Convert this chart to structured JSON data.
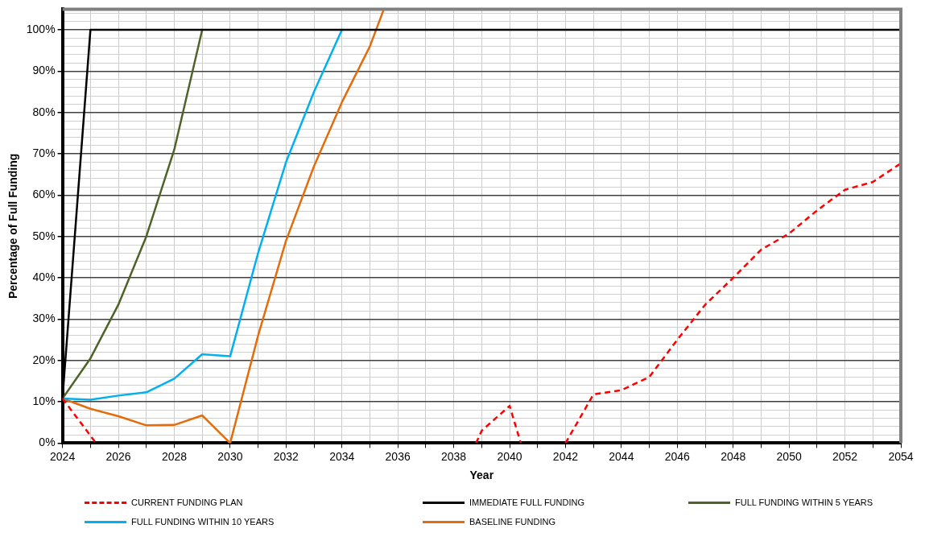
{
  "chart_data": {
    "type": "line",
    "xlabel": "Year",
    "ylabel": "Percentage of Full Funding",
    "grid": true,
    "legend": "bottom",
    "marker": "none",
    "xlim": [
      2024,
      2054
    ],
    "xticks": [
      2024,
      {
        "value": 2025,
        "label": null
      },
      2026,
      {
        "value": 2027,
        "label": null
      },
      2028,
      {
        "value": 2029,
        "label": null
      },
      2030,
      {
        "value": 2031,
        "label": null
      },
      2032,
      {
        "value": 2033,
        "label": null
      },
      2034,
      {
        "value": 2035,
        "label": null
      },
      2036,
      {
        "value": 2037,
        "label": null
      },
      2038,
      {
        "value": 2039,
        "label": null
      },
      2040,
      {
        "value": 2041,
        "label": null
      },
      2042,
      {
        "value": 2043,
        "label": null
      },
      2044,
      {
        "value": 2045,
        "label": null
      },
      2046,
      {
        "value": 2047,
        "label": null
      },
      2048,
      {
        "value": 2049,
        "label": null
      },
      2050,
      {
        "value": 2051,
        "label": null
      },
      2052,
      {
        "value": 2053,
        "label": null
      },
      2054
    ],
    "ylim": [
      0,
      105
    ],
    "yticks": [
      {
        "value": 0,
        "label": "0%"
      },
      {
        "value": 2,
        "label": null
      },
      {
        "value": 4,
        "label": null
      },
      {
        "value": 6,
        "label": null
      },
      {
        "value": 8,
        "label": null
      },
      {
        "value": 10,
        "label": "10%"
      },
      {
        "value": 12,
        "label": null
      },
      {
        "value": 14,
        "label": null
      },
      {
        "value": 16,
        "label": null
      },
      {
        "value": 18,
        "label": null
      },
      {
        "value": 20,
        "label": "20%"
      },
      {
        "value": 22,
        "label": null
      },
      {
        "value": 24,
        "label": null
      },
      {
        "value": 26,
        "label": null
      },
      {
        "value": 28,
        "label": null
      },
      {
        "value": 30,
        "label": "30%"
      },
      {
        "value": 32,
        "label": null
      },
      {
        "value": 34,
        "label": null
      },
      {
        "value": 36,
        "label": null
      },
      {
        "value": 38,
        "label": null
      },
      {
        "value": 40,
        "label": "40%"
      },
      {
        "value": 42,
        "label": null
      },
      {
        "value": 44,
        "label": null
      },
      {
        "value": 46,
        "label": null
      },
      {
        "value": 48,
        "label": null
      },
      {
        "value": 50,
        "label": "50%"
      },
      {
        "value": 52,
        "label": null
      },
      {
        "value": 54,
        "label": null
      },
      {
        "value": 56,
        "label": null
      },
      {
        "value": 58,
        "label": null
      },
      {
        "value": 60,
        "label": "60%"
      },
      {
        "value": 62,
        "label": null
      },
      {
        "value": 64,
        "label": null
      },
      {
        "value": 66,
        "label": null
      },
      {
        "value": 68,
        "label": null
      },
      {
        "value": 70,
        "label": "70%"
      },
      {
        "value": 72,
        "label": null
      },
      {
        "value": 74,
        "label": null
      },
      {
        "value": 76,
        "label": null
      },
      {
        "value": 78,
        "label": null
      },
      {
        "value": 80,
        "label": "80%"
      },
      {
        "value": 82,
        "label": null
      },
      {
        "value": 84,
        "label": null
      },
      {
        "value": 86,
        "label": null
      },
      {
        "value": 88,
        "label": null
      },
      {
        "value": 90,
        "label": "90%"
      },
      {
        "value": 92,
        "label": null
      },
      {
        "value": 94,
        "label": null
      },
      {
        "value": 96,
        "label": null
      },
      {
        "value": 98,
        "label": null
      },
      {
        "value": 100,
        "label": "100%"
      },
      {
        "value": 102,
        "label": null
      },
      {
        "value": 104,
        "label": null
      }
    ],
    "series": [
      {
        "name": "CURRENT FUNDING PLAN",
        "color": "#ff0000",
        "line_style": "dashed",
        "x": [
          2024,
          2025.2,
          2030,
          2038.8,
          2039,
          2040,
          2040.4,
          2041,
          2042,
          2043,
          2044,
          2045,
          2046,
          2047,
          2048,
          2049,
          2050,
          2051,
          2052,
          2053,
          2054
        ],
        "values": [
          10.8,
          0,
          null,
          0,
          3,
          9,
          0,
          null,
          0,
          11.8,
          12.8,
          16,
          25,
          33.5,
          40,
          46.8,
          50.7,
          56.3,
          61.3,
          63.2,
          67.7
        ]
      },
      {
        "name": "IMMEDIATE FULL FUNDING",
        "color": "#000000",
        "line_style": "solid",
        "x": [
          2024,
          2025,
          2054
        ],
        "values": [
          10.8,
          100,
          100
        ]
      },
      {
        "name": "FULL FUNDING WITHIN 5 YEARS",
        "color": "#4f6228",
        "line_style": "solid",
        "x": [
          2024,
          2025,
          2026,
          2027,
          2028,
          2029
        ],
        "values": [
          10.8,
          20.5,
          33.5,
          50,
          71,
          100
        ]
      },
      {
        "name": "FULL FUNDING WITHIN 10 YEARS",
        "color": "#00b0f0",
        "line_style": "solid",
        "x": [
          2024,
          2025,
          2026,
          2027,
          2028,
          2029,
          2030,
          2031,
          2032,
          2033,
          2034
        ],
        "values": [
          10.8,
          10.5,
          11.5,
          12.3,
          15.6,
          21.5,
          21,
          46,
          68,
          85,
          100
        ]
      },
      {
        "name": "BASELINE FUNDING",
        "color": "#e46c0a",
        "line_style": "solid",
        "x": [
          2024,
          2025,
          2026,
          2027,
          2028,
          2029,
          2030,
          2031,
          2032,
          2033,
          2034,
          2035,
          2035.5
        ],
        "values": [
          10.8,
          8.3,
          6.5,
          4.3,
          4.4,
          6.7,
          0,
          26,
          49,
          67,
          82.5,
          96,
          105
        ]
      }
    ]
  }
}
